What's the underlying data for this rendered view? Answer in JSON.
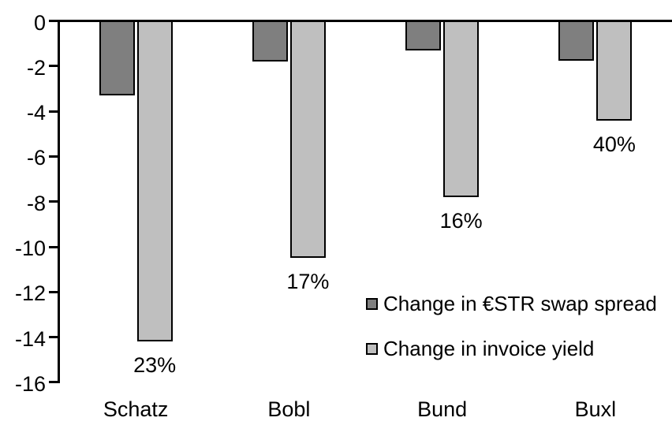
{
  "chart_data": {
    "type": "bar",
    "title": "",
    "xlabel": "",
    "ylabel": "",
    "background": "#FFFFFF",
    "bar_border_color": "#000000",
    "categories": [
      "Schatz",
      "Bobl",
      "Bund",
      "Buxl"
    ],
    "series": [
      {
        "name": "Change in €STR swap spread",
        "color": "#7F7F7F",
        "values": [
          -3.3,
          -1.8,
          -1.3,
          -1.75
        ]
      },
      {
        "name": "Change in invoice yield",
        "color": "#BFBFBF",
        "values": [
          -14.2,
          -10.5,
          -7.8,
          -4.4
        ],
        "value_labels": [
          "23%",
          "17%",
          "16%",
          "40%"
        ]
      }
    ],
    "y_axis": {
      "min": -16,
      "max": 0,
      "tick_step": 2,
      "ticks": [
        0,
        -2,
        -4,
        -6,
        -8,
        -10,
        -12,
        -14,
        -16
      ],
      "grid": false
    },
    "legend": {
      "position": "inside-right",
      "entries": [
        "Change in €STR swap spread",
        "Change in invoice yield"
      ]
    }
  }
}
